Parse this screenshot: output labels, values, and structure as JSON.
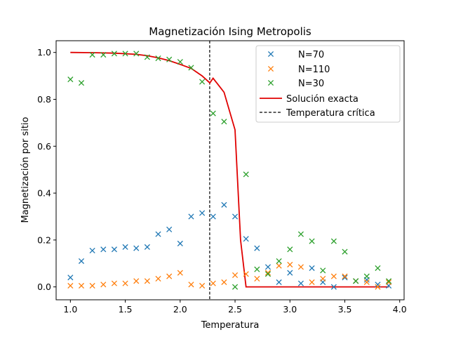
{
  "chart_data": {
    "type": "scatter",
    "title": "Magnetización Ising Metropolis",
    "xlabel": "Temperatura",
    "ylabel": "Magnetización por sitio",
    "xlim": [
      0.87,
      4.04
    ],
    "ylim": [
      -0.055,
      1.05
    ],
    "xticks": [
      1.0,
      1.5,
      2.0,
      2.5,
      3.0,
      3.5,
      4.0
    ],
    "xtick_labels": [
      "1.0",
      "1.5",
      "2.0",
      "2.5",
      "3.0",
      "3.5",
      "4.0"
    ],
    "yticks": [
      0.0,
      0.2,
      0.4,
      0.6,
      0.8,
      1.0
    ],
    "ytick_labels": [
      "0.0",
      "0.2",
      "0.4",
      "0.6",
      "0.8",
      "1.0"
    ],
    "grid": false,
    "legend_position": "top-right",
    "x": [
      1.0,
      1.1,
      1.2,
      1.3,
      1.4,
      1.5,
      1.6,
      1.7,
      1.8,
      1.9,
      2.0,
      2.1,
      2.2,
      2.3,
      2.4,
      2.5,
      2.6,
      2.7,
      2.8,
      2.9,
      3.0,
      3.1,
      3.2,
      3.3,
      3.4,
      3.5,
      3.6,
      3.7,
      3.8,
      3.9
    ],
    "series": [
      {
        "name": "N=70",
        "color": "#1f77b4",
        "marker": "x",
        "values": [
          0.04,
          0.11,
          0.155,
          0.16,
          0.16,
          0.17,
          0.165,
          0.17,
          0.225,
          0.245,
          0.185,
          0.3,
          0.315,
          0.3,
          0.35,
          0.3,
          0.205,
          0.165,
          0.085,
          0.02,
          0.06,
          0.015,
          0.08,
          0.02,
          0.0,
          0.04,
          0.025,
          0.03,
          0.01,
          0.005
        ]
      },
      {
        "name": "N=110",
        "color": "#ff7f0e",
        "marker": "x",
        "values": [
          0.005,
          0.005,
          0.005,
          0.01,
          0.015,
          0.015,
          0.025,
          0.025,
          0.035,
          0.045,
          0.06,
          0.01,
          0.005,
          0.015,
          0.02,
          0.05,
          0.055,
          0.035,
          0.06,
          0.09,
          0.095,
          0.085,
          0.02,
          0.035,
          0.045,
          0.045,
          0.025,
          0.02,
          0.0,
          0.02
        ]
      },
      {
        "name": "N=30",
        "color": "#2ca02c",
        "marker": "x",
        "values": [
          0.885,
          0.87,
          0.99,
          0.99,
          0.995,
          0.995,
          0.995,
          0.98,
          0.975,
          0.97,
          0.96,
          0.935,
          0.875,
          0.74,
          0.705,
          0.0,
          0.48,
          0.075,
          0.055,
          0.11,
          0.16,
          0.225,
          0.195,
          0.07,
          0.195,
          0.15,
          0.025,
          0.045,
          0.08,
          0.025
        ]
      },
      {
        "name": "Solución exacta",
        "color": "#e00000",
        "style": "solid-line",
        "x": [
          1.0,
          1.2,
          1.4,
          1.6,
          1.7,
          1.8,
          1.9,
          2.0,
          2.1,
          2.2,
          2.27,
          2.3,
          2.35,
          2.4,
          2.45,
          2.5,
          2.55,
          2.6,
          3.9
        ],
        "values": [
          1.0,
          0.999,
          0.997,
          0.992,
          0.986,
          0.977,
          0.965,
          0.949,
          0.932,
          0.9,
          0.87,
          0.89,
          0.86,
          0.83,
          0.75,
          0.67,
          0.2,
          0.0,
          0.0
        ]
      },
      {
        "name": "Temperatura crítica",
        "color": "#000000",
        "style": "dashed-vertical",
        "x_value": 2.269
      }
    ]
  }
}
